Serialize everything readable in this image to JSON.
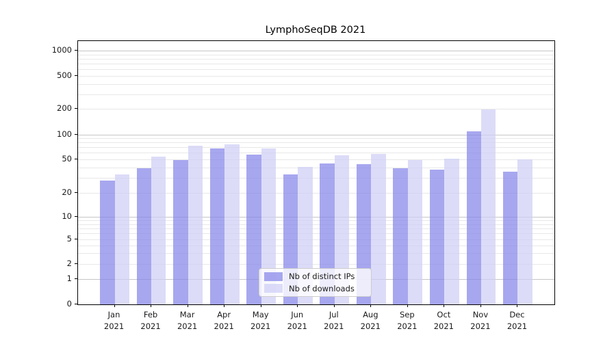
{
  "title": "LymphoSeqDB 2021",
  "chart_data": {
    "type": "bar",
    "title": "LymphoSeqDB 2021",
    "categories": [
      "Jan 2021",
      "Feb 2021",
      "Mar 2021",
      "Apr 2021",
      "May 2021",
      "Jun 2021",
      "Jul 2021",
      "Aug 2021",
      "Sep 2021",
      "Oct 2021",
      "Nov 2021",
      "Dec 2021"
    ],
    "x_tick_month": [
      "Jan",
      "Feb",
      "Mar",
      "Apr",
      "May",
      "Jun",
      "Jul",
      "Aug",
      "Sep",
      "Oct",
      "Nov",
      "Dec"
    ],
    "x_tick_year": "2021",
    "series": [
      {
        "name": "Nb of distinct IPs",
        "color": "#a7a7ef",
        "fill_rgba": "rgba(133,133,233,0.72)",
        "values": [
          28,
          39,
          49,
          68,
          57,
          33,
          45,
          44,
          39,
          38,
          110,
          36
        ]
      },
      {
        "name": "Nb of downloads",
        "color": "#dcdcf8",
        "fill_rgba": "rgba(206,206,245,0.72)",
        "values": [
          33,
          54,
          73,
          76,
          68,
          41,
          56,
          58,
          49,
          51,
          197,
          50
        ]
      }
    ],
    "xlabel": "",
    "ylabel": "",
    "yscale": "symlog",
    "ylim": [
      0,
      1300
    ],
    "ytick_values": [
      0,
      1,
      2,
      5,
      10,
      20,
      50,
      100,
      200,
      500,
      1000
    ],
    "ytick_labels": [
      "0",
      "1",
      "2",
      "5",
      "10",
      "20",
      "50",
      "100",
      "200",
      "500",
      "1000"
    ],
    "grid": true,
    "legend_position": "lower center"
  },
  "colors": {
    "grid_major": "#c6c6c6",
    "grid_minor": "#e8e8e8",
    "spine": "#000000",
    "text": "#1a1a1a"
  }
}
